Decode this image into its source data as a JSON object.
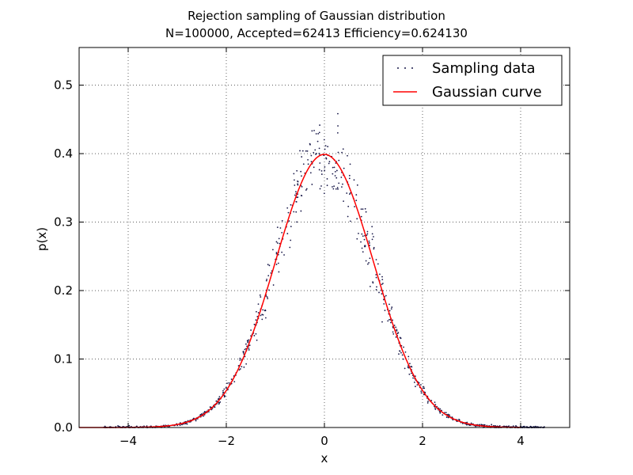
{
  "chart_data": {
    "type": "scatter",
    "title": "Rejection sampling of Gaussian distribution",
    "subtitle": "N=100000, Accepted=62413 Efficiency=0.624130",
    "xlabel": "x",
    "ylabel": "p(x)",
    "xlim": [
      -5,
      5
    ],
    "ylim": [
      0,
      0.555
    ],
    "xticks": [
      -4,
      -2,
      0,
      2,
      4
    ],
    "yticks": [
      0.0,
      0.1,
      0.2,
      0.3,
      0.4,
      0.5
    ],
    "xtick_labels": [
      "−4",
      "−2",
      "0",
      "2",
      "4"
    ],
    "ytick_labels": [
      "0.0",
      "0.1",
      "0.2",
      "0.3",
      "0.4",
      "0.5"
    ],
    "grid": true,
    "legend_position": "top-right",
    "series": [
      {
        "name": "Sampling data",
        "kind": "scatter",
        "color": "#1a1a4a",
        "x_range": [
          -4.5,
          4.5
        ],
        "n_points": 900,
        "mean": 0,
        "std": 1,
        "noise_relative": 0.07
      },
      {
        "name": "Gaussian curve",
        "kind": "line",
        "color": "#ff0000",
        "x_range": [
          -5,
          4
        ],
        "mean": 0,
        "std": 1
      }
    ]
  }
}
